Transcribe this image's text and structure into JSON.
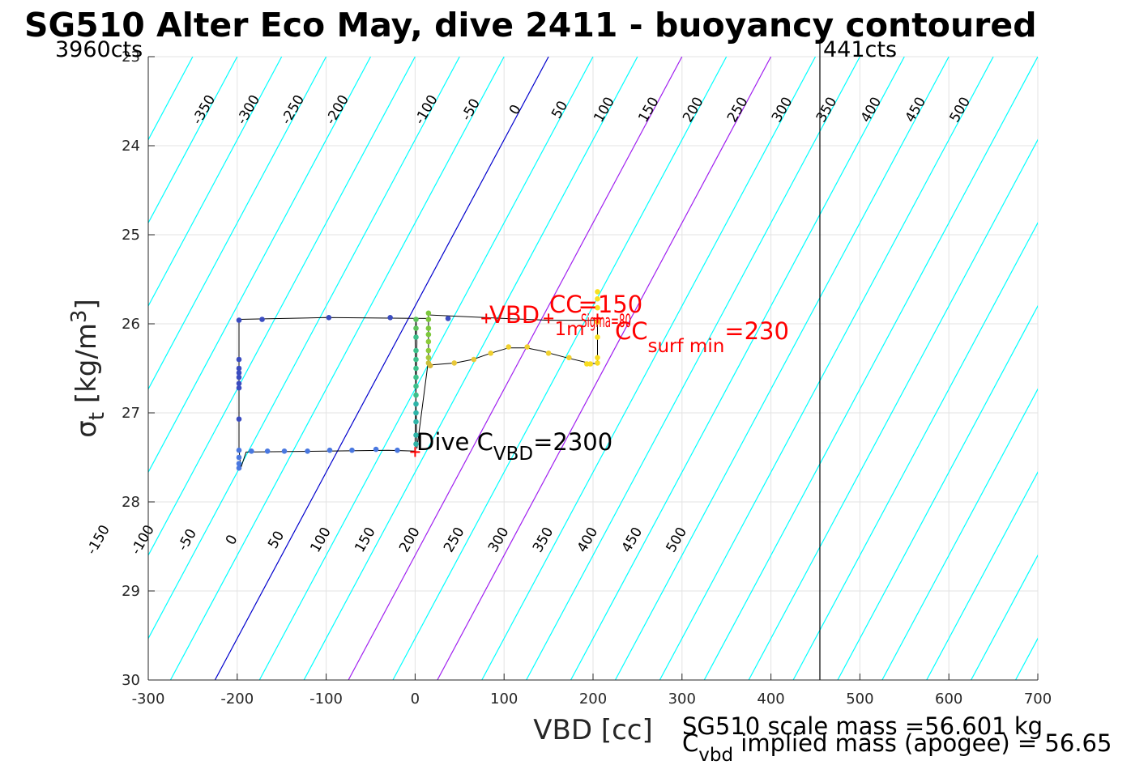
{
  "chart_data": {
    "type": "line",
    "title": "SG510 Alter Eco May, dive 2411 - buoyancy contoured",
    "xlabel": "VBD [cc]",
    "ylabel_main": "σ",
    "ylabel_sub": "t",
    "ylabel_units": "[kg/m",
    "ylabel_sup": "3",
    "ylabel_close": "]",
    "xlim": [
      -300,
      700
    ],
    "ylim": [
      23,
      30
    ],
    "y_reversed": true,
    "grid": true,
    "xticks": [
      -300,
      -200,
      -100,
      0,
      100,
      200,
      300,
      400,
      500,
      600,
      700
    ],
    "xtick_labels": [
      "-300",
      "-200",
      "-100",
      "0",
      "100",
      "200",
      "300",
      "400",
      "500",
      "600",
      "700"
    ],
    "yticks": [
      23,
      24,
      25,
      26,
      27,
      28,
      29,
      30
    ],
    "ytick_labels": [
      "23",
      "24",
      "25",
      "26",
      "27",
      "28",
      "29",
      "30"
    ],
    "corner_labels": {
      "left": "3960cts",
      "right": "441cts"
    },
    "vline_x": 455,
    "buoyancy_contours": {
      "slope_cc_per_sigma": 93,
      "values": [
        -350,
        -300,
        -250,
        -200,
        -150,
        -100,
        -50,
        0,
        50,
        100,
        150,
        200,
        250,
        300,
        350,
        400,
        450,
        500
      ],
      "ref": {
        "zero_x_at_23": 150,
        "zero_x_at_30": -225,
        "ref_sigma_26": 0
      },
      "line_colors": {
        "default": "#00ffff",
        "zero": "#0000cd",
        "magenta": "#a020f0"
      },
      "magenta_values": [
        150,
        250
      ],
      "top_labels": [
        "-350",
        "-300",
        "-250",
        "-200",
        "-100",
        "-50",
        "0",
        "50",
        "100",
        "150",
        "200",
        "250",
        "300",
        "350",
        "400",
        "450",
        "500"
      ],
      "bottom_labels": [
        "-150",
        "-100",
        "-50",
        "0",
        "50",
        "100",
        "150",
        "200",
        "250",
        "300",
        "350",
        "400",
        "450",
        "500"
      ]
    },
    "series": [
      {
        "color": "#000000",
        "points": [
          [
            -198,
            25.95
          ],
          [
            -198,
            26.4
          ],
          [
            -198,
            27.4
          ],
          [
            -196,
            27.62
          ],
          [
            -190,
            27.44
          ],
          [
            -100,
            27.43
          ],
          [
            -30,
            27.42
          ],
          [
            0,
            27.43
          ],
          [
            0,
            27.3
          ],
          [
            2,
            26.2
          ],
          [
            1,
            25.95
          ],
          [
            0,
            26.15
          ],
          [
            1,
            26.9
          ],
          [
            2,
            27.4
          ],
          [
            15,
            26.4
          ],
          [
            15,
            25.9
          ],
          [
            100,
            25.94
          ],
          [
            150,
            25.96
          ],
          [
            205,
            25.96
          ],
          [
            205,
            26.45
          ],
          [
            195,
            26.44
          ],
          [
            170,
            26.38
          ],
          [
            140,
            26.3
          ],
          [
            125,
            26.27
          ],
          [
            105,
            26.27
          ],
          [
            85,
            26.33
          ],
          [
            65,
            26.4
          ],
          [
            45,
            26.44
          ],
          [
            20,
            26.46
          ],
          [
            15,
            26.48
          ],
          [
            15,
            25.94
          ],
          [
            -100,
            25.93
          ],
          [
            -198,
            25.95
          ]
        ]
      }
    ],
    "scatter_points": [
      {
        "x": -198,
        "y": 25.96,
        "color": "#3b4cc0"
      },
      {
        "x": -172,
        "y": 25.95,
        "color": "#3b4cc0"
      },
      {
        "x": -97,
        "y": 25.93,
        "color": "#3b4cc0"
      },
      {
        "x": -28,
        "y": 25.93,
        "color": "#3b4cc0"
      },
      {
        "x": 37,
        "y": 25.94,
        "color": "#3b4cc0"
      },
      {
        "x": -198,
        "y": 26.4,
        "color": "#3b4cc0"
      },
      {
        "x": -198,
        "y": 26.5,
        "color": "#3b4cc0"
      },
      {
        "x": -198,
        "y": 26.55,
        "color": "#3b4cc0"
      },
      {
        "x": -198,
        "y": 26.6,
        "color": "#3b4cc0"
      },
      {
        "x": -198,
        "y": 26.67,
        "color": "#3b4cc0"
      },
      {
        "x": -198,
        "y": 26.72,
        "color": "#3b4cc0"
      },
      {
        "x": -198,
        "y": 27.07,
        "color": "#3b4cc0"
      },
      {
        "x": -198,
        "y": 27.42,
        "color": "#4a78e0"
      },
      {
        "x": -198,
        "y": 27.5,
        "color": "#4a78e0"
      },
      {
        "x": -198,
        "y": 27.57,
        "color": "#4a78e0"
      },
      {
        "x": -198,
        "y": 27.62,
        "color": "#4a78e0"
      },
      {
        "x": -184,
        "y": 27.43,
        "color": "#4a78e0"
      },
      {
        "x": -166,
        "y": 27.43,
        "color": "#4a78e0"
      },
      {
        "x": -147,
        "y": 27.43,
        "color": "#4a78e0"
      },
      {
        "x": -121,
        "y": 27.43,
        "color": "#4a78e0"
      },
      {
        "x": -96,
        "y": 27.42,
        "color": "#4a78e0"
      },
      {
        "x": -71,
        "y": 27.42,
        "color": "#4a78e0"
      },
      {
        "x": -44,
        "y": 27.41,
        "color": "#4a78e0"
      },
      {
        "x": -20,
        "y": 27.42,
        "color": "#4a78e0"
      },
      {
        "x": 1,
        "y": 27.35,
        "color": "#2fb4a8"
      },
      {
        "x": 1,
        "y": 27.25,
        "color": "#2fb4a8"
      },
      {
        "x": 1,
        "y": 27.1,
        "color": "#2fb4a8"
      },
      {
        "x": 1,
        "y": 27.0,
        "color": "#2fb4a8"
      },
      {
        "x": 1,
        "y": 26.9,
        "color": "#2fb4a8"
      },
      {
        "x": 1,
        "y": 26.8,
        "color": "#3cc08a"
      },
      {
        "x": 1,
        "y": 26.7,
        "color": "#3cc08a"
      },
      {
        "x": 1,
        "y": 26.6,
        "color": "#3cc08a"
      },
      {
        "x": 1,
        "y": 26.5,
        "color": "#3cc08a"
      },
      {
        "x": 1,
        "y": 26.4,
        "color": "#3cc08a"
      },
      {
        "x": 1,
        "y": 26.3,
        "color": "#3cc08a"
      },
      {
        "x": 1,
        "y": 26.15,
        "color": "#3cc08a"
      },
      {
        "x": 1,
        "y": 26.05,
        "color": "#5cc35a"
      },
      {
        "x": 1,
        "y": 25.95,
        "color": "#5cc35a"
      },
      {
        "x": 15,
        "y": 25.88,
        "color": "#7cc83c"
      },
      {
        "x": 15,
        "y": 25.95,
        "color": "#7cc83c"
      },
      {
        "x": 15,
        "y": 26.05,
        "color": "#7cc83c"
      },
      {
        "x": 15,
        "y": 26.12,
        "color": "#7cc83c"
      },
      {
        "x": 15,
        "y": 26.2,
        "color": "#8ccc3a"
      },
      {
        "x": 15,
        "y": 26.3,
        "color": "#8ccc3a"
      },
      {
        "x": 15,
        "y": 26.38,
        "color": "#a8c83a"
      },
      {
        "x": 15,
        "y": 26.44,
        "color": "#c8c03a"
      },
      {
        "x": 17,
        "y": 26.47,
        "color": "#d8b83a"
      },
      {
        "x": 44,
        "y": 26.44,
        "color": "#e8c83a"
      },
      {
        "x": 66,
        "y": 26.4,
        "color": "#e8c83a"
      },
      {
        "x": 85,
        "y": 26.33,
        "color": "#f0d030"
      },
      {
        "x": 105,
        "y": 26.26,
        "color": "#f0d030"
      },
      {
        "x": 126,
        "y": 26.26,
        "color": "#f0d030"
      },
      {
        "x": 150,
        "y": 26.33,
        "color": "#f0d030"
      },
      {
        "x": 173,
        "y": 26.38,
        "color": "#f0d030"
      },
      {
        "x": 193,
        "y": 26.45,
        "color": "#f8dc20"
      },
      {
        "x": 197,
        "y": 26.45,
        "color": "#f8dc20"
      },
      {
        "x": 205,
        "y": 26.44,
        "color": "#f8dc20"
      },
      {
        "x": 205,
        "y": 26.38,
        "color": "#f8dc20"
      },
      {
        "x": 205,
        "y": 26.15,
        "color": "#f8e020"
      },
      {
        "x": 205,
        "y": 25.98,
        "color": "#f8e020"
      },
      {
        "x": 205,
        "y": 25.82,
        "color": "#f8e020"
      },
      {
        "x": 205,
        "y": 25.72,
        "color": "#f8e020"
      },
      {
        "x": 205,
        "y": 25.64,
        "color": "#f8e020"
      }
    ],
    "markers": [
      {
        "x": 0,
        "y": 27.44,
        "color": "#ff0000",
        "symbol": "+"
      },
      {
        "x": 80,
        "y": 25.94,
        "color": "#ff0000",
        "symbol": "+"
      },
      {
        "x": 150,
        "y": 25.94,
        "color": "#ff0000",
        "symbol": "+"
      },
      {
        "x": 205,
        "y": 25.94,
        "color": "#ff0000",
        "symbol": "+"
      }
    ],
    "annotations": {
      "vbd_label": "VBD",
      "cc_main": "CC",
      "cc_sub": "1m",
      "cc_eq": "=150",
      "sigma_overlap": "Sigma=80",
      "ccsurf_main": "CC",
      "ccsurf_sub": "surf min",
      "ccsurf_eq": "=230",
      "dive_main": "Dive C",
      "dive_sub": "VBD",
      "dive_eq": "=2300",
      "mass_line1": "SG510 scale mass =56.601 kg",
      "mass_line2_main": "C",
      "mass_line2_sub": "vbd",
      "mass_line2_rest": " implied mass (apogee) = 56.65"
    }
  }
}
